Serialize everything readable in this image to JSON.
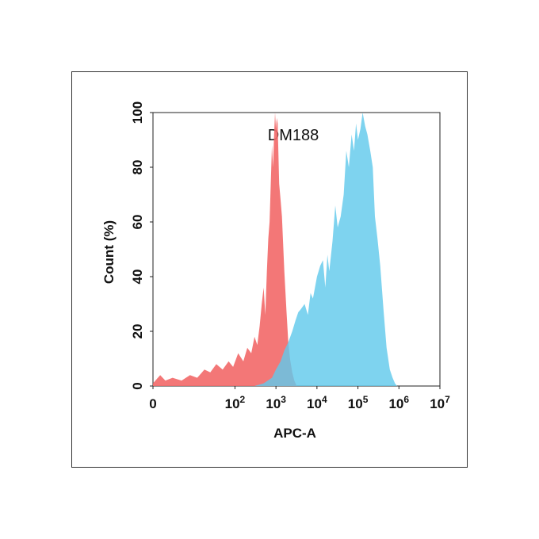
{
  "chart_data": {
    "type": "area",
    "title": "DM188",
    "xlabel": "APC-A",
    "ylabel": "Count  (%)",
    "xscale": "log",
    "xlim": [
      1,
      10000000
    ],
    "ylim": [
      0,
      100
    ],
    "x_ticks": [
      {
        "value": 1,
        "base": "0",
        "exp": ""
      },
      {
        "value": 100,
        "base": "10",
        "exp": "2"
      },
      {
        "value": 1000,
        "base": "10",
        "exp": "3"
      },
      {
        "value": 10000,
        "base": "10",
        "exp": "4"
      },
      {
        "value": 100000,
        "base": "10",
        "exp": "5"
      },
      {
        "value": 1000000,
        "base": "10",
        "exp": "6"
      },
      {
        "value": 10000000,
        "base": "10",
        "exp": "7"
      }
    ],
    "y_ticks": [
      0,
      20,
      40,
      60,
      80,
      100
    ],
    "grid": false,
    "series": [
      {
        "color": "#f26b6b",
        "x": [
          1,
          1.5,
          2,
          3,
          5,
          8,
          12,
          18,
          25,
          35,
          50,
          70,
          90,
          120,
          160,
          200,
          250,
          300,
          350,
          400,
          450,
          500,
          550,
          600,
          650,
          700,
          750,
          800,
          850,
          900,
          950,
          1000,
          1050,
          1100,
          1200,
          1300,
          1400,
          1500,
          1600,
          1800,
          2000,
          2200,
          2500,
          2800,
          3200
        ],
        "y": [
          1,
          4,
          2,
          3,
          2,
          4,
          3,
          6,
          5,
          8,
          6,
          9,
          7,
          12,
          9,
          14,
          12,
          18,
          15,
          22,
          30,
          36,
          26,
          42,
          54,
          60,
          75,
          88,
          80,
          92,
          100,
          94,
          98,
          96,
          74,
          68,
          62,
          52,
          42,
          28,
          16,
          10,
          5,
          2,
          0
        ]
      },
      {
        "color": "#62c9ec",
        "x": [
          300,
          500,
          800,
          1000,
          1300,
          1600,
          2000,
          2500,
          3000,
          3500,
          4000,
          5000,
          6000,
          7000,
          8000,
          10000,
          12000,
          14000,
          16000,
          18000,
          20000,
          24000,
          28000,
          32000,
          38000,
          45000,
          52000,
          60000,
          70000,
          80000,
          90000,
          100000,
          115000,
          130000,
          150000,
          170000,
          200000,
          230000,
          260000,
          300000,
          350000,
          420000,
          500000,
          600000,
          700000,
          800000,
          900000,
          1000000,
          1200000,
          1500000
        ],
        "y": [
          0,
          1,
          3,
          6,
          9,
          13,
          16,
          20,
          24,
          27,
          28,
          30,
          26,
          34,
          32,
          40,
          44,
          46,
          36,
          48,
          42,
          53,
          66,
          58,
          62,
          70,
          86,
          80,
          92,
          86,
          96,
          90,
          94,
          100,
          95,
          92,
          86,
          80,
          62,
          54,
          44,
          28,
          14,
          6,
          3,
          1,
          0,
          0,
          0,
          0
        ]
      }
    ]
  }
}
